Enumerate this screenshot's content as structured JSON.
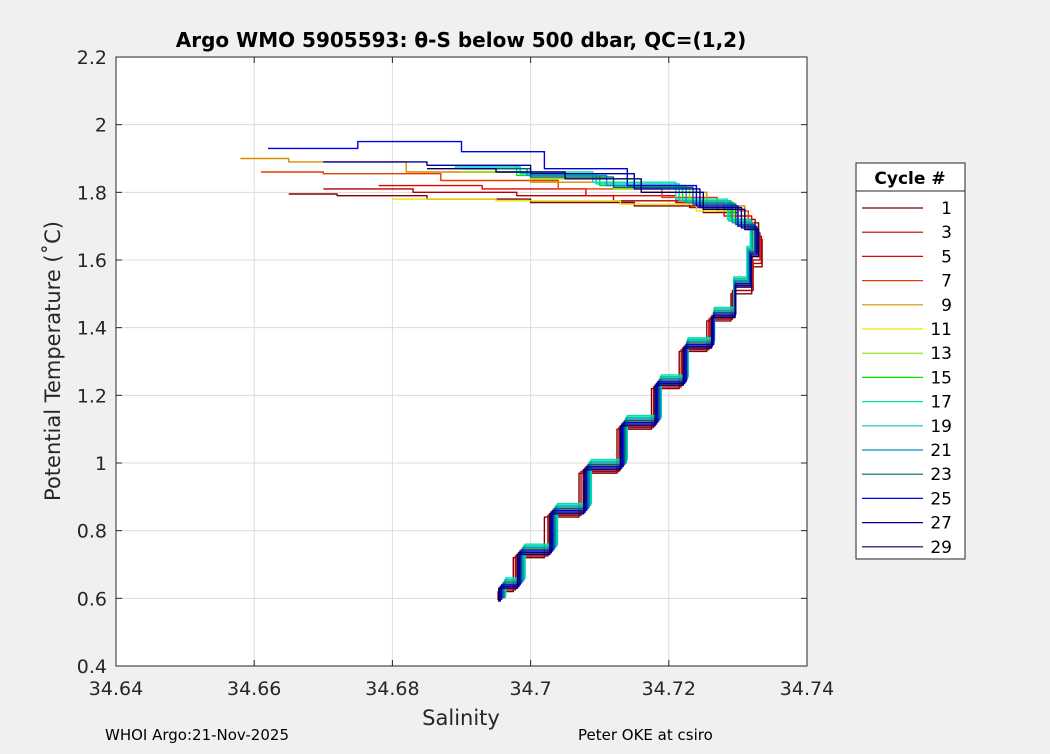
{
  "chart_data": {
    "type": "line",
    "title": "Argo WMO 5905593: θ-S below 500 dbar,  QC=(1,2)",
    "xlabel": "Salinity",
    "ylabel": "Potential Temperature (˚C)",
    "xlim": [
      34.64,
      34.74
    ],
    "ylim": [
      0.4,
      2.2
    ],
    "x_ticks": [
      "34.64",
      "34.66",
      "34.68",
      "34.7",
      "34.72",
      "34.74"
    ],
    "y_ticks": [
      "0.4",
      "0.6",
      "0.8",
      "1",
      "1.2",
      "1.4",
      "1.6",
      "1.8",
      "2",
      "2.2"
    ],
    "grid": true,
    "legend_title": "Cycle #",
    "legend_position": "right",
    "series": [
      {
        "name": "1",
        "color": "#800000",
        "x": [
          34.6953,
          34.6975,
          34.702,
          34.707,
          34.7125,
          34.7175,
          34.7215,
          34.7255,
          34.729,
          34.732,
          34.7335,
          34.733,
          34.73,
          34.725,
          34.715,
          34.7,
          34.685,
          34.672,
          34.665
        ],
        "y": [
          0.595,
          0.62,
          0.72,
          0.84,
          0.97,
          1.1,
          1.22,
          1.33,
          1.42,
          1.5,
          1.58,
          1.66,
          1.71,
          1.74,
          1.76,
          1.77,
          1.78,
          1.79,
          1.795
        ]
      },
      {
        "name": "3",
        "color": "#b40000",
        "x": [
          34.6955,
          34.6978,
          34.7025,
          34.7073,
          34.7128,
          34.7178,
          34.7218,
          34.7258,
          34.7292,
          34.7322,
          34.7334,
          34.7325,
          34.729,
          34.723,
          34.712,
          34.698,
          34.683,
          34.67
        ],
        "y": [
          0.595,
          0.625,
          0.725,
          0.845,
          0.975,
          1.105,
          1.225,
          1.335,
          1.425,
          1.51,
          1.59,
          1.67,
          1.72,
          1.755,
          1.775,
          1.79,
          1.8,
          1.81
        ]
      },
      {
        "name": "5",
        "color": "#e60000",
        "x": [
          34.6957,
          34.698,
          34.7027,
          34.7076,
          34.713,
          34.718,
          34.722,
          34.726,
          34.7294,
          34.7322,
          34.7332,
          34.732,
          34.728,
          34.721,
          34.708,
          34.693,
          34.678
        ],
        "y": [
          0.6,
          0.63,
          0.73,
          0.85,
          0.98,
          1.11,
          1.23,
          1.34,
          1.43,
          1.52,
          1.6,
          1.68,
          1.73,
          1.77,
          1.79,
          1.81,
          1.82
        ]
      },
      {
        "name": "7",
        "color": "#e63c00",
        "x": [
          34.6958,
          34.6982,
          34.7029,
          34.7078,
          34.7132,
          34.7182,
          34.7222,
          34.7262,
          34.7295,
          34.7321,
          34.733,
          34.7315,
          34.727,
          34.719,
          34.704,
          34.687,
          34.67,
          34.661
        ],
        "y": [
          0.6,
          0.635,
          0.735,
          0.855,
          0.985,
          1.115,
          1.235,
          1.345,
          1.435,
          1.525,
          1.61,
          1.69,
          1.745,
          1.785,
          1.81,
          1.835,
          1.855,
          1.86
        ]
      },
      {
        "name": "9",
        "color": "#d98c00",
        "x": [
          34.696,
          34.6984,
          34.7031,
          34.708,
          34.7134,
          34.7184,
          34.7224,
          34.7263,
          34.7296,
          34.732,
          34.7328,
          34.731,
          34.7255,
          34.716,
          34.7,
          34.682,
          34.665,
          34.658
        ],
        "y": [
          0.6,
          0.64,
          0.74,
          0.86,
          0.99,
          1.12,
          1.24,
          1.35,
          1.44,
          1.53,
          1.62,
          1.7,
          1.76,
          1.8,
          1.83,
          1.86,
          1.89,
          1.9
        ]
      },
      {
        "name": "11",
        "color": "#e6e600",
        "x": [
          34.6961,
          34.6986,
          34.7033,
          34.7082,
          34.7135,
          34.7185,
          34.7225,
          34.7264,
          34.7296,
          34.7318,
          34.7325,
          34.73,
          34.724,
          34.713,
          34.695,
          34.68
        ],
        "y": [
          0.6,
          0.645,
          0.745,
          0.865,
          0.995,
          1.125,
          1.245,
          1.355,
          1.445,
          1.535,
          1.625,
          1.7,
          1.745,
          1.765,
          1.775,
          1.78
        ]
      },
      {
        "name": "13",
        "color": "#80e600",
        "x": [
          34.6962,
          34.6988,
          34.7035,
          34.7084,
          34.7137,
          34.7187,
          34.7226,
          34.7265,
          34.7295,
          34.7316,
          34.7322,
          34.7295,
          34.723,
          34.712,
          34.7,
          34.69
        ],
        "y": [
          0.6,
          0.65,
          0.75,
          0.87,
          1.0,
          1.13,
          1.25,
          1.36,
          1.45,
          1.54,
          1.63,
          1.71,
          1.77,
          1.81,
          1.84,
          1.86
        ]
      },
      {
        "name": "15",
        "color": "#00e600",
        "x": [
          34.6963,
          34.699,
          34.7037,
          34.7086,
          34.7138,
          34.7188,
          34.7227,
          34.7266,
          34.7295,
          34.7315,
          34.732,
          34.729,
          34.722,
          34.71,
          34.698,
          34.69
        ],
        "y": [
          0.605,
          0.655,
          0.755,
          0.875,
          1.005,
          1.135,
          1.255,
          1.365,
          1.455,
          1.545,
          1.635,
          1.715,
          1.775,
          1.82,
          1.85,
          1.87
        ]
      },
      {
        "name": "17",
        "color": "#00e6a0",
        "x": [
          34.6964,
          34.6992,
          34.7039,
          34.7088,
          34.714,
          34.7189,
          34.7228,
          34.7266,
          34.7294,
          34.7313,
          34.7318,
          34.7285,
          34.721,
          34.709,
          34.698,
          34.688
        ],
        "y": [
          0.605,
          0.66,
          0.76,
          0.88,
          1.01,
          1.14,
          1.26,
          1.37,
          1.46,
          1.55,
          1.64,
          1.72,
          1.78,
          1.83,
          1.86,
          1.88
        ]
      },
      {
        "name": "19",
        "color": "#00c8c8",
        "x": [
          34.6963,
          34.6991,
          34.7038,
          34.7087,
          34.7139,
          34.7189,
          34.7228,
          34.7266,
          34.7294,
          34.7314,
          34.7319,
          34.7287,
          34.7215,
          34.7095,
          34.6985,
          34.689
        ],
        "y": [
          0.6,
          0.655,
          0.755,
          0.875,
          1.005,
          1.135,
          1.255,
          1.365,
          1.455,
          1.545,
          1.635,
          1.715,
          1.775,
          1.825,
          1.855,
          1.875
        ]
      },
      {
        "name": "21",
        "color": "#0096c8",
        "x": [
          34.6962,
          34.6989,
          34.7036,
          34.7085,
          34.7138,
          34.7188,
          34.7227,
          34.7266,
          34.7295,
          34.7315,
          34.7321,
          34.7292,
          34.7225,
          34.711,
          34.6995,
          34.69
        ],
        "y": [
          0.6,
          0.65,
          0.75,
          0.87,
          1.0,
          1.13,
          1.25,
          1.36,
          1.45,
          1.54,
          1.63,
          1.71,
          1.77,
          1.82,
          1.85,
          1.87
        ]
      },
      {
        "name": "23",
        "color": "#006464",
        "x": [
          34.696,
          34.6987,
          34.7034,
          34.7083,
          34.7136,
          34.7186,
          34.7226,
          34.7265,
          34.7296,
          34.7317,
          34.7324,
          34.7297,
          34.7235,
          34.712,
          34.7,
          34.69
        ],
        "y": [
          0.6,
          0.645,
          0.745,
          0.865,
          0.995,
          1.125,
          1.245,
          1.355,
          1.445,
          1.535,
          1.625,
          1.705,
          1.765,
          1.815,
          1.845,
          1.87
        ]
      },
      {
        "name": "25",
        "color": "#0000e6",
        "x": [
          34.6958,
          34.6985,
          34.7032,
          34.7081,
          34.7134,
          34.7184,
          34.7225,
          34.7265,
          34.7297,
          34.7318,
          34.7326,
          34.73,
          34.724,
          34.714,
          34.702,
          34.69,
          34.675,
          34.662
        ],
        "y": [
          0.595,
          0.64,
          0.74,
          0.86,
          0.99,
          1.12,
          1.24,
          1.35,
          1.44,
          1.53,
          1.62,
          1.7,
          1.76,
          1.82,
          1.87,
          1.92,
          1.95,
          1.93
        ]
      },
      {
        "name": "27",
        "color": "#0000a0",
        "x": [
          34.6956,
          34.6983,
          34.703,
          34.7079,
          34.7132,
          34.7182,
          34.7223,
          34.7263,
          34.7296,
          34.7319,
          34.7328,
          34.7305,
          34.7245,
          34.715,
          34.7,
          34.685,
          34.67
        ],
        "y": [
          0.59,
          0.635,
          0.735,
          0.855,
          0.985,
          1.115,
          1.235,
          1.345,
          1.435,
          1.525,
          1.615,
          1.695,
          1.755,
          1.81,
          1.855,
          1.88,
          1.89
        ]
      },
      {
        "name": "29",
        "color": "#000064",
        "x": [
          34.6954,
          34.6981,
          34.7028,
          34.7077,
          34.713,
          34.718,
          34.7221,
          34.7262,
          34.7296,
          34.732,
          34.733,
          34.731,
          34.725,
          34.716,
          34.705,
          34.695,
          34.685
        ],
        "y": [
          0.59,
          0.63,
          0.73,
          0.85,
          0.98,
          1.11,
          1.23,
          1.34,
          1.43,
          1.52,
          1.61,
          1.69,
          1.75,
          1.8,
          1.84,
          1.86,
          1.87
        ]
      }
    ]
  },
  "footer": {
    "left": "WHOI Argo:21-Nov-2025",
    "right": "Peter OKE at csiro"
  }
}
